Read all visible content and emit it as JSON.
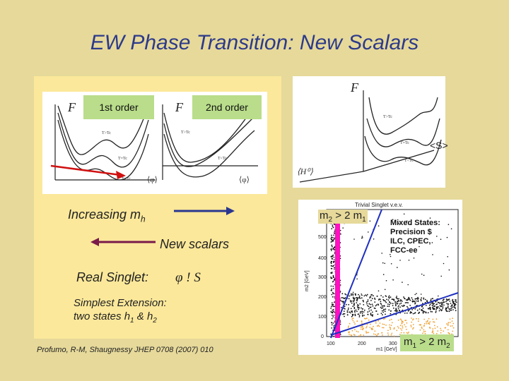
{
  "slide": {
    "title": "EW Phase Transition: New Scalars",
    "fig1": {
      "label_1st": "1st order",
      "label_2nd": "2nd order",
      "F_left": "F",
      "F_right": "F",
      "t_left_1": "T>Tc",
      "t_left_2": "T=Tc",
      "t_left_3": "T<Tc",
      "t_right_1": "T>Tc",
      "t_right_2": "T<Tc",
      "phi_left": "⟨φ⟩",
      "phi_right": "⟨φ⟩"
    },
    "fig2": {
      "F": "F",
      "t1": "T>Tc",
      "t2": "T=Tc",
      "t3": "T<Tc",
      "s_axis": "<S>",
      "h_axis": "⟨H⁰⟩"
    },
    "increasing": "Increasing m",
    "increasing_sub": "h",
    "new_scalars": "New scalars",
    "real_singlet": "Real Singlet:",
    "phi_s": "φ ! S",
    "simplest_1": "Simplest Extension:",
    "simplest_2": "two states h",
    "simplest_2_sub1": "1",
    "simplest_2_mid": " & h",
    "simplest_2_sub2": "2",
    "citation": "Profumo, R-M, Shaugnessy JHEP 0708 (2007) 010",
    "scatter": {
      "header": "Trivial Singlet v.e.v.",
      "yaxis_label": "m2 [GeV]",
      "xaxis_label": "m1 [GeV]",
      "yticks": [
        "500",
        "400",
        "300",
        "200",
        "100",
        "0"
      ],
      "xticks": [
        "100",
        "200",
        "300"
      ],
      "m2_label": "m",
      "m2_sub": "2",
      "m2_rest": " > 2 m",
      "m2_sub2": "1",
      "m1_label": "m",
      "m1_sub": "1",
      "m1_rest": " > 2 m",
      "m1_sub2": "2",
      "mixed_1": "Mixed States:",
      "mixed_2": "Precision $",
      "mixed_3": "ILC, CPEC,",
      "mixed_4": "FCC-ee"
    },
    "colors": {
      "title": "#2d3a8a",
      "arrow": "#2a3690",
      "arrow_back": "#7a1a4a",
      "magenta": "#ff10c0"
    }
  }
}
